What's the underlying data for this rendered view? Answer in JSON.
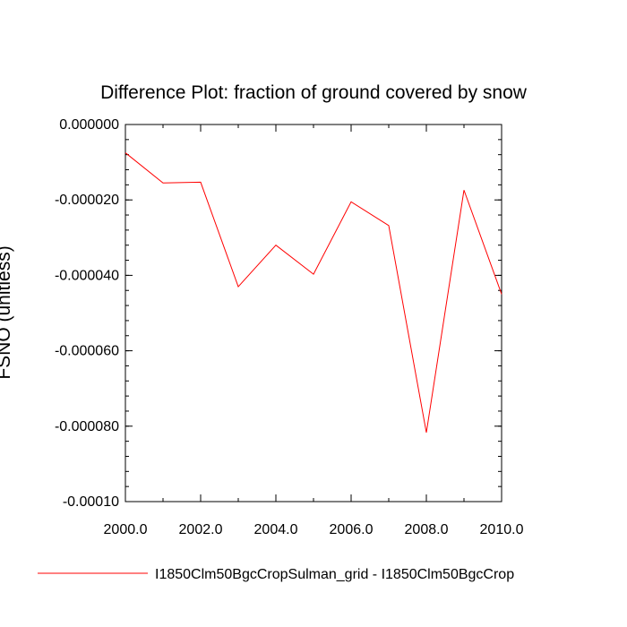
{
  "chart_data": {
    "type": "line",
    "title": "Difference Plot: fraction of ground covered by snow",
    "xlabel": "",
    "ylabel": "FSNO  (unitless)",
    "xlim": [
      2000,
      2010
    ],
    "ylim": [
      -0.0001,
      0
    ],
    "xticks": [
      2000,
      2002,
      2004,
      2006,
      2008,
      2010
    ],
    "xtick_labels": [
      "2000.0",
      "2002.0",
      "2004.0",
      "2006.0",
      "2008.0",
      "2010.0"
    ],
    "yticks": [
      0,
      -2e-05,
      -4e-05,
      -6e-05,
      -8e-05,
      -0.0001
    ],
    "ytick_labels": [
      "0.000000",
      "-0.000020",
      "-0.000040",
      "-0.000060",
      "-0.000080",
      "-0.00010"
    ],
    "grid": false,
    "legend_position": "bottom",
    "series": [
      {
        "name": "I1850Clm50BgcCropSulman_grid - I1850Clm50BgcCrop",
        "color": "#ff0000",
        "x": [
          2000,
          2001,
          2002,
          2003,
          2004,
          2005,
          2006,
          2007,
          2008,
          2009,
          2010
        ],
        "values": [
          -7.5e-06,
          -1.55e-05,
          -1.53e-05,
          -4.3e-05,
          -3.2e-05,
          -3.97e-05,
          -2.05e-05,
          -2.68e-05,
          -8.17e-05,
          -1.74e-05,
          -4.5e-05
        ]
      }
    ]
  }
}
